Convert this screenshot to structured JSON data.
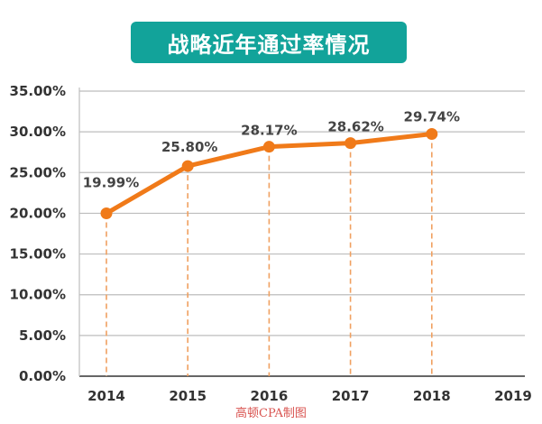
{
  "chart_data": {
    "type": "line",
    "title": "战略近年通过率情况",
    "categories": [
      "2014",
      "2015",
      "2016",
      "2017",
      "2018",
      "2019"
    ],
    "series": [
      {
        "values": [
          19.99,
          25.8,
          28.17,
          28.62,
          29.74,
          null
        ],
        "labels": [
          "19.99%",
          "25.80%",
          "28.17%",
          "28.62%",
          "29.74%",
          ""
        ]
      }
    ],
    "y_ticks": [
      "0.00%",
      "5.00%",
      "10.00%",
      "15.00%",
      "20.00%",
      "25.00%",
      "30.00%",
      "35.00%"
    ],
    "ylim": [
      0,
      35
    ],
    "grid": true,
    "legend": "none"
  },
  "footer": "高顿CPA制图",
  "colors": {
    "banner": "#12a39a",
    "line": "#f07a19",
    "marker": "#f07a19",
    "drop_line": "#f0a060",
    "grid": "#bdbdbd",
    "axis": "#333333",
    "footer_text": "#d9534f"
  }
}
